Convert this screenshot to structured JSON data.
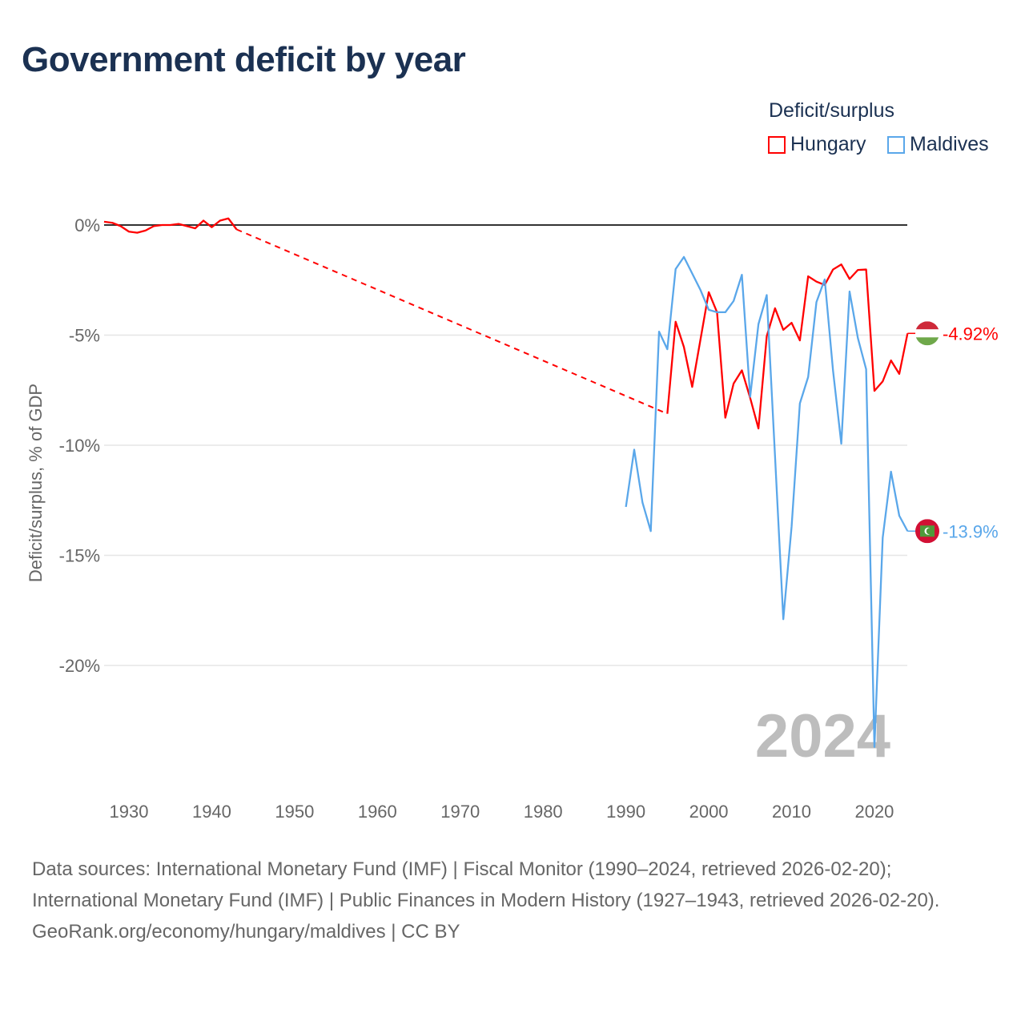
{
  "title": "Government deficit by year",
  "legend": {
    "title": "Deficit/surplus",
    "items": [
      {
        "label": "Hungary",
        "color": "#ff0000"
      },
      {
        "label": "Maldives",
        "color": "#5aa7ea"
      }
    ]
  },
  "chart_data": {
    "type": "line",
    "title": "Government deficit by year",
    "ylabel": "Deficit/surplus, % of GDP",
    "xlabel": "",
    "xlim": [
      1927,
      2024
    ],
    "ylim": [
      -24,
      0.5
    ],
    "x_ticks": [
      1930,
      1940,
      1950,
      1960,
      1970,
      1980,
      1990,
      2000,
      2010,
      2020
    ],
    "y_ticks": [
      0,
      -5,
      -10,
      -15,
      -20
    ],
    "y_tick_labels": [
      "0%",
      "-5%",
      "-10%",
      "-15%",
      "-20%"
    ],
    "year_watermark": "2024",
    "series": [
      {
        "name": "Hungary",
        "color": "#ff0000",
        "end_label": "-4.92%",
        "gap": [
          1943,
          1995
        ],
        "points": [
          [
            1927,
            0.15
          ],
          [
            1928,
            0.1
          ],
          [
            1929,
            -0.05
          ],
          [
            1930,
            -0.3
          ],
          [
            1931,
            -0.35
          ],
          [
            1932,
            -0.25
          ],
          [
            1933,
            -0.05
          ],
          [
            1934,
            0
          ],
          [
            1935,
            0
          ],
          [
            1936,
            0.05
          ],
          [
            1937,
            -0.05
          ],
          [
            1938,
            -0.15
          ],
          [
            1939,
            0.2
          ],
          [
            1940,
            -0.1
          ],
          [
            1941,
            0.2
          ],
          [
            1942,
            0.3
          ],
          [
            1943,
            -0.2
          ],
          [
            1995,
            -8.57
          ],
          [
            1996,
            -4.39
          ],
          [
            1997,
            -5.54
          ],
          [
            1998,
            -7.35
          ],
          [
            1999,
            -5.2
          ],
          [
            2000,
            -3.05
          ],
          [
            2001,
            -3.96
          ],
          [
            2002,
            -8.75
          ],
          [
            2003,
            -7.2
          ],
          [
            2004,
            -6.6
          ],
          [
            2005,
            -7.85
          ],
          [
            2006,
            -9.24
          ],
          [
            2007,
            -5.05
          ],
          [
            2008,
            -3.78
          ],
          [
            2009,
            -4.76
          ],
          [
            2010,
            -4.44
          ],
          [
            2011,
            -5.24
          ],
          [
            2012,
            -2.33
          ],
          [
            2013,
            -2.57
          ],
          [
            2014,
            -2.72
          ],
          [
            2015,
            -2.02
          ],
          [
            2016,
            -1.79
          ],
          [
            2017,
            -2.45
          ],
          [
            2018,
            -2.04
          ],
          [
            2019,
            -2.02
          ],
          [
            2020,
            -7.53
          ],
          [
            2021,
            -7.1
          ],
          [
            2022,
            -6.15
          ],
          [
            2023,
            -6.76
          ],
          [
            2024,
            -4.92
          ]
        ]
      },
      {
        "name": "Maldives",
        "color": "#5aa7ea",
        "end_label": "-13.9%",
        "points": [
          [
            1990,
            -12.8
          ],
          [
            1991,
            -10.2
          ],
          [
            1992,
            -12.6
          ],
          [
            1993,
            -13.9
          ],
          [
            1994,
            -4.84
          ],
          [
            1995,
            -5.64
          ],
          [
            1996,
            -2.0
          ],
          [
            1997,
            -1.45
          ],
          [
            1998,
            -2.2
          ],
          [
            1999,
            -2.95
          ],
          [
            2000,
            -3.85
          ],
          [
            2001,
            -3.96
          ],
          [
            2002,
            -3.96
          ],
          [
            2003,
            -3.45
          ],
          [
            2004,
            -2.26
          ],
          [
            2005,
            -7.8
          ],
          [
            2006,
            -4.5
          ],
          [
            2007,
            -3.18
          ],
          [
            2008,
            -10.5
          ],
          [
            2009,
            -17.9
          ],
          [
            2010,
            -13.7
          ],
          [
            2011,
            -8.1
          ],
          [
            2012,
            -6.9
          ],
          [
            2013,
            -3.5
          ],
          [
            2014,
            -2.47
          ],
          [
            2015,
            -6.6
          ],
          [
            2016,
            -9.93
          ],
          [
            2017,
            -3.02
          ],
          [
            2018,
            -5.13
          ],
          [
            2019,
            -6.55
          ],
          [
            2020,
            -23.7
          ],
          [
            2021,
            -14.2
          ],
          [
            2022,
            -11.2
          ],
          [
            2023,
            -13.2
          ],
          [
            2024,
            -13.9
          ]
        ]
      }
    ]
  },
  "footer": {
    "sources": "Data sources: International Monetary Fund (IMF) | Fiscal Monitor (1990–2024, retrieved 2026-02-20); International Monetary Fund (IMF) | Public Finances in Modern History (1927–1943, retrieved 2026-02-20).",
    "credit": "GeoRank.org/economy/hungary/maldives | CC BY"
  }
}
